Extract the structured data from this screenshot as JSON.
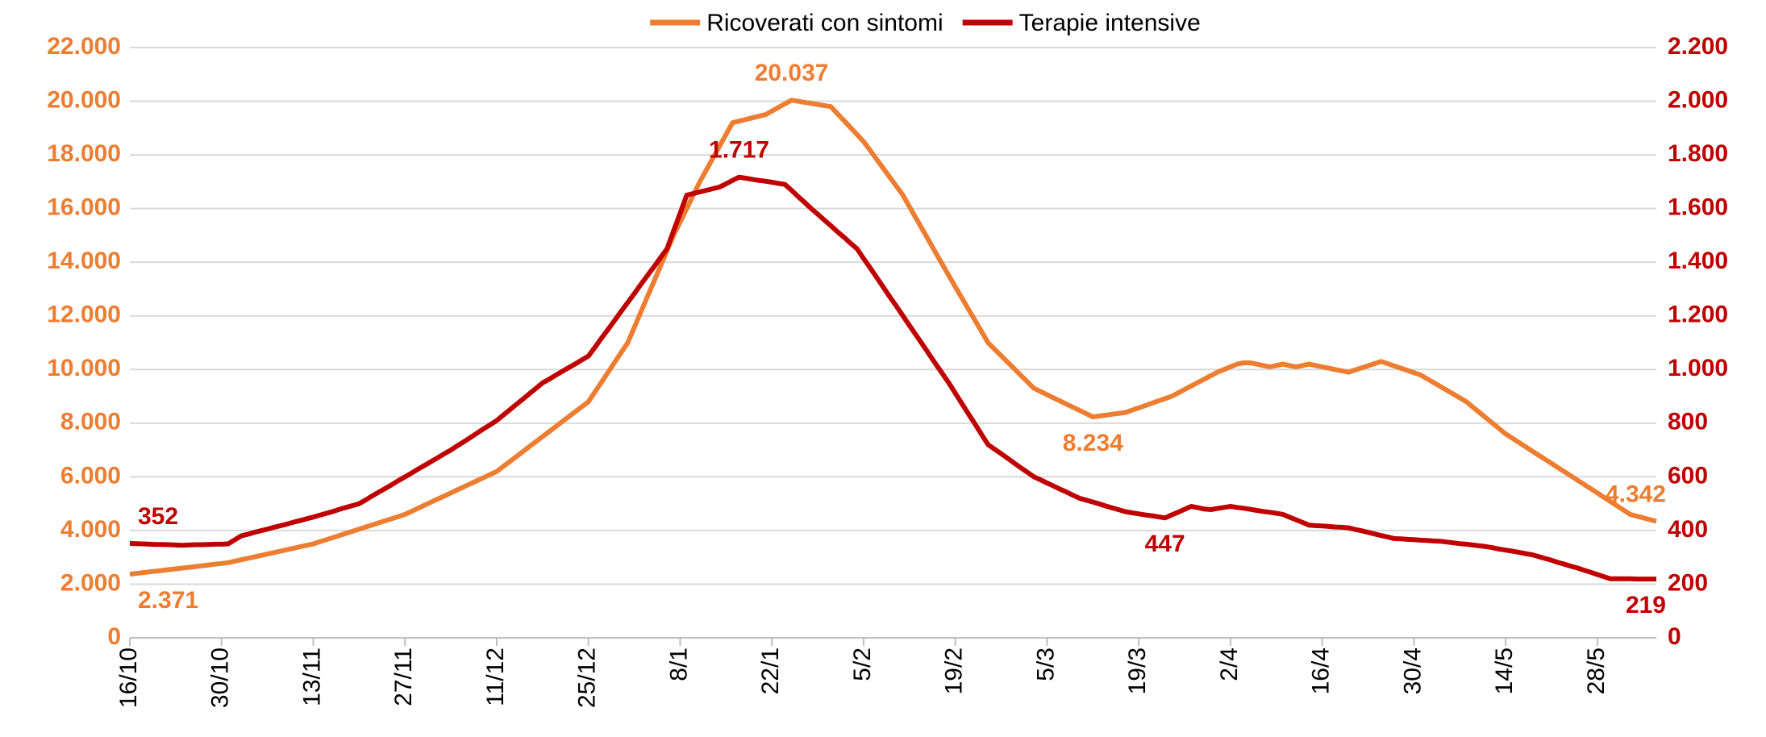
{
  "chart_data": {
    "type": "line",
    "categories": [
      "16/10",
      null,
      null,
      null,
      null,
      null,
      null,
      null,
      null,
      null,
      null,
      null,
      null,
      null,
      "30/10",
      null,
      null,
      null,
      null,
      null,
      null,
      null,
      null,
      null,
      null,
      null,
      null,
      null,
      "13/11",
      null,
      null,
      null,
      null,
      null,
      null,
      null,
      null,
      null,
      null,
      null,
      null,
      null,
      "27/11",
      null,
      null,
      null,
      null,
      null,
      null,
      null,
      null,
      null,
      null,
      null,
      null,
      null,
      "11/12",
      null,
      null,
      null,
      null,
      null,
      null,
      null,
      null,
      null,
      null,
      null,
      null,
      null,
      "25/12",
      null,
      null,
      null,
      null,
      null,
      null,
      null,
      null,
      null,
      null,
      null,
      null,
      null,
      "8/1",
      null,
      null,
      null,
      null,
      null,
      null,
      null,
      null,
      null,
      null,
      null,
      null,
      null,
      "22/1",
      null,
      null,
      null,
      null,
      null,
      null,
      null,
      null,
      null,
      null,
      null,
      null,
      null,
      "5/2",
      null,
      null,
      null,
      null,
      null,
      null,
      null,
      null,
      null,
      null,
      null,
      null,
      null,
      "19/2",
      null,
      null,
      null,
      null,
      null,
      null,
      null,
      null,
      null,
      null,
      null,
      null,
      null,
      "5/3",
      null,
      null,
      null,
      null,
      null,
      null,
      null,
      null,
      null,
      null,
      null,
      null,
      null,
      "19/3",
      null,
      null,
      null,
      null,
      null,
      null,
      null,
      null,
      null,
      null,
      null,
      null,
      null,
      "2/4",
      null,
      null,
      null,
      null,
      null,
      null,
      null,
      null,
      null,
      null,
      null,
      null,
      null,
      "16/4",
      null,
      null,
      null,
      null,
      null,
      null,
      null,
      null,
      null,
      null,
      null,
      null,
      null,
      "30/4",
      null,
      null,
      null,
      null,
      null,
      null,
      null,
      null,
      null,
      null,
      null,
      null,
      null,
      "14/5",
      null,
      null,
      null,
      null,
      null,
      null,
      null,
      null,
      null,
      null,
      null,
      null,
      null,
      "28/5",
      null,
      null,
      null,
      null,
      null,
      null,
      null,
      null,
      null
    ],
    "series": [
      {
        "name": "Ricoverati con sintomi",
        "color": "#ED7D31",
        "axis": "y",
        "values": [
          2371,
          2400,
          2428,
          2457,
          2485,
          2514,
          2543,
          2571,
          2600,
          2628,
          2657,
          2686,
          2714,
          2743,
          2771,
          2800,
          2854,
          2908,
          2962,
          3015,
          3069,
          3123,
          3177,
          3231,
          3285,
          3338,
          3392,
          3446,
          3500,
          3579,
          3657,
          3736,
          3814,
          3893,
          3971,
          4050,
          4129,
          4207,
          4286,
          4364,
          4443,
          4521,
          4600,
          4714,
          4829,
          4943,
          5057,
          5171,
          5286,
          5400,
          5514,
          5629,
          5743,
          5857,
          5971,
          6086,
          6200,
          6386,
          6571,
          6757,
          6943,
          7129,
          7314,
          7500,
          7686,
          7871,
          8057,
          8243,
          8429,
          8614,
          8800,
          9167,
          9533,
          9900,
          10267,
          10633,
          11000,
          11571,
          12143,
          12714,
          13286,
          13857,
          14429,
          15000,
          15500,
          16000,
          16500,
          17000,
          17440,
          17880,
          18320,
          18760,
          19200,
          19260,
          19320,
          19380,
          19440,
          19500,
          19634,
          19769,
          19903,
          20037,
          19998,
          19958,
          19919,
          19879,
          19840,
          19800,
          19540,
          19280,
          19020,
          18760,
          18500,
          18167,
          17833,
          17500,
          17167,
          16833,
          16500,
          16071,
          15643,
          15214,
          14786,
          14357,
          13929,
          13500,
          13083,
          12667,
          12250,
          11833,
          11417,
          11000,
          10757,
          10514,
          10271,
          10029,
          9786,
          9543,
          9300,
          9182,
          9063,
          8945,
          8826,
          8708,
          8589,
          8471,
          8352,
          8234,
          8267,
          8300,
          8334,
          8367,
          8400,
          8486,
          8571,
          8657,
          8743,
          8829,
          8914,
          9000,
          9129,
          9257,
          9386,
          9514,
          9643,
          9771,
          9900,
          10000,
          10100,
          10200,
          10250,
          10250,
          10200,
          10150,
          10100,
          10150,
          10200,
          10150,
          10100,
          10150,
          10200,
          10150,
          10100,
          10050,
          10000,
          9950,
          9900,
          9980,
          10060,
          10140,
          10220,
          10300,
          10217,
          10133,
          10050,
          9967,
          9883,
          9800,
          9657,
          9514,
          9371,
          9229,
          9086,
          8943,
          8800,
          8600,
          8400,
          8200,
          8000,
          7800,
          7600,
          7443,
          7286,
          7129,
          6971,
          6814,
          6657,
          6500,
          6343,
          6186,
          6029,
          5871,
          5714,
          5557,
          5400,
          5240,
          5080,
          4920,
          4760,
          4600,
          4536,
          4471,
          4407,
          4342
        ],
        "value_labels": [
          "2.371",
          null,
          null,
          null,
          null,
          null,
          null,
          null,
          null,
          null,
          null,
          null,
          null,
          null,
          null,
          null,
          null,
          null,
          null,
          null,
          null,
          null,
          null,
          null,
          null,
          null,
          null,
          null,
          null,
          null,
          null,
          null,
          null,
          null,
          null,
          null,
          null,
          null,
          null,
          null,
          null,
          null,
          null,
          null,
          null,
          null,
          null,
          null,
          null,
          null,
          null,
          null,
          null,
          null,
          null,
          null,
          null,
          null,
          null,
          null,
          null,
          null,
          null,
          null,
          null,
          null,
          null,
          null,
          null,
          null,
          null,
          null,
          null,
          null,
          null,
          null,
          null,
          null,
          null,
          null,
          null,
          null,
          null,
          null,
          null,
          null,
          null,
          null,
          null,
          null,
          null,
          null,
          null,
          null,
          null,
          null,
          null,
          null,
          null,
          null,
          null,
          "20.037",
          null,
          null,
          null,
          null,
          null,
          null,
          null,
          null,
          null,
          null,
          null,
          null,
          null,
          null,
          null,
          null,
          null,
          null,
          null,
          null,
          null,
          null,
          null,
          null,
          null,
          null,
          null,
          null,
          null,
          null,
          null,
          null,
          null,
          null,
          null,
          null,
          null,
          null,
          null,
          null,
          null,
          null,
          null,
          null,
          null,
          "8.234",
          null,
          null,
          null,
          null,
          null,
          null,
          null,
          null,
          null,
          null,
          null,
          null,
          null,
          null,
          null,
          null,
          null,
          null,
          null,
          null,
          null,
          null,
          null,
          null,
          null,
          null,
          null,
          null,
          null,
          null,
          null,
          null,
          null,
          null,
          null,
          null,
          null,
          null,
          null,
          null,
          null,
          null,
          null,
          null,
          null,
          null,
          null,
          null,
          null,
          null,
          null,
          null,
          null,
          null,
          null,
          null,
          null,
          null,
          null,
          null,
          null,
          null,
          null,
          null,
          null,
          null,
          null,
          null,
          null,
          null,
          null,
          null,
          null,
          null,
          null,
          null,
          null,
          null,
          null,
          null,
          null,
          null,
          null,
          null,
          null,
          "4.342"
        ]
      },
      {
        "name": "Terapie intensive",
        "color": "#C00000",
        "axis": "y2",
        "values": [
          352,
          351,
          350,
          349,
          348,
          348,
          347,
          346,
          345,
          346,
          347,
          347,
          348,
          349,
          349,
          350,
          365,
          380,
          386,
          393,
          399,
          405,
          412,
          418,
          424,
          431,
          437,
          444,
          450,
          457,
          464,
          471,
          479,
          486,
          493,
          500,
          514,
          529,
          543,
          557,
          571,
          586,
          600,
          614,
          629,
          643,
          657,
          671,
          686,
          700,
          716,
          731,
          747,
          763,
          779,
          794,
          810,
          830,
          850,
          870,
          890,
          910,
          930,
          950,
          964,
          979,
          993,
          1007,
          1021,
          1036,
          1050,
          1083,
          1117,
          1150,
          1183,
          1217,
          1250,
          1283,
          1317,
          1350,
          1383,
          1417,
          1450,
          1517,
          1583,
          1650,
          1656,
          1662,
          1668,
          1674,
          1680,
          1692,
          1705,
          1717,
          1713,
          1709,
          1705,
          1702,
          1698,
          1694,
          1690,
          1668,
          1645,
          1623,
          1600,
          1579,
          1557,
          1536,
          1514,
          1493,
          1471,
          1450,
          1414,
          1379,
          1343,
          1307,
          1271,
          1236,
          1200,
          1164,
          1129,
          1093,
          1057,
          1021,
          986,
          950,
          912,
          873,
          835,
          797,
          758,
          720,
          703,
          686,
          669,
          651,
          634,
          617,
          600,
          589,
          577,
          566,
          554,
          543,
          531,
          520,
          513,
          506,
          499,
          491,
          484,
          477,
          470,
          466,
          462,
          458,
          455,
          451,
          447,
          458,
          468,
          479,
          490,
          485,
          480,
          478,
          482,
          486,
          490,
          486,
          483,
          479,
          475,
          471,
          468,
          464,
          460,
          450,
          440,
          430,
          420,
          418,
          417,
          415,
          413,
          412,
          410,
          404,
          399,
          393,
          387,
          381,
          376,
          370,
          369,
          367,
          366,
          364,
          363,
          361,
          360,
          357,
          354,
          351,
          349,
          346,
          343,
          340,
          336,
          331,
          327,
          323,
          319,
          314,
          310,
          303,
          296,
          289,
          281,
          274,
          267,
          260,
          252,
          244,
          236,
          228,
          220,
          220,
          220,
          220,
          219,
          219,
          219,
          219
        ],
        "value_labels": [
          "352",
          null,
          null,
          null,
          null,
          null,
          null,
          null,
          null,
          null,
          null,
          null,
          null,
          null,
          null,
          null,
          null,
          null,
          null,
          null,
          null,
          null,
          null,
          null,
          null,
          null,
          null,
          null,
          null,
          null,
          null,
          null,
          null,
          null,
          null,
          null,
          null,
          null,
          null,
          null,
          null,
          null,
          null,
          null,
          null,
          null,
          null,
          null,
          null,
          null,
          null,
          null,
          null,
          null,
          null,
          null,
          null,
          null,
          null,
          null,
          null,
          null,
          null,
          null,
          null,
          null,
          null,
          null,
          null,
          null,
          null,
          null,
          null,
          null,
          null,
          null,
          null,
          null,
          null,
          null,
          null,
          null,
          null,
          null,
          null,
          null,
          null,
          null,
          null,
          null,
          null,
          null,
          null,
          "1.717",
          null,
          null,
          null,
          null,
          null,
          null,
          null,
          null,
          null,
          null,
          null,
          null,
          null,
          null,
          null,
          null,
          null,
          null,
          null,
          null,
          null,
          null,
          null,
          null,
          null,
          null,
          null,
          null,
          null,
          null,
          null,
          null,
          null,
          null,
          null,
          null,
          null,
          null,
          null,
          null,
          null,
          null,
          null,
          null,
          null,
          null,
          null,
          null,
          null,
          null,
          null,
          null,
          null,
          null,
          null,
          null,
          null,
          null,
          null,
          null,
          null,
          null,
          null,
          null,
          "447",
          null,
          null,
          null,
          null,
          null,
          null,
          null,
          null,
          null,
          null,
          null,
          null,
          null,
          null,
          null,
          null,
          null,
          null,
          null,
          null,
          null,
          null,
          null,
          null,
          null,
          null,
          null,
          null,
          null,
          null,
          null,
          null,
          null,
          null,
          null,
          null,
          null,
          null,
          null,
          null,
          null,
          null,
          null,
          null,
          null,
          null,
          null,
          null,
          null,
          null,
          null,
          null,
          null,
          null,
          null,
          null,
          null,
          null,
          null,
          null,
          null,
          null,
          null,
          null,
          null,
          null,
          null,
          null,
          null,
          null,
          null,
          null,
          null,
          null,
          "219"
        ]
      }
    ],
    "ylim": [
      0,
      22000
    ],
    "yticks": [
      0,
      {
        "value": 2000,
        "label": "2.000"
      },
      {
        "value": 4000,
        "label": "4.000"
      },
      {
        "value": 6000,
        "label": "6.000"
      },
      {
        "value": 8000,
        "label": "8.000"
      },
      {
        "value": 10000,
        "label": "10.000"
      },
      {
        "value": 12000,
        "label": "12.000"
      },
      {
        "value": 14000,
        "label": "14.000"
      },
      {
        "value": 16000,
        "label": "16.000"
      },
      {
        "value": 18000,
        "label": "18.000"
      },
      {
        "value": 20000,
        "label": "20.000"
      },
      {
        "value": 22000,
        "label": "22.000"
      }
    ],
    "y2lim": [
      0,
      2200
    ],
    "y2ticks": [
      0,
      200,
      400,
      600,
      800,
      {
        "value": 1000,
        "label": "1.000"
      },
      {
        "value": 1200,
        "label": "1.200"
      },
      {
        "value": 1400,
        "label": "1.400"
      },
      {
        "value": 1600,
        "label": "1.600"
      },
      {
        "value": 1800,
        "label": "1.800"
      },
      {
        "value": 2000,
        "label": "2.000"
      },
      {
        "value": 2200,
        "label": "2.200"
      }
    ],
    "grid": true,
    "legend": "top"
  }
}
